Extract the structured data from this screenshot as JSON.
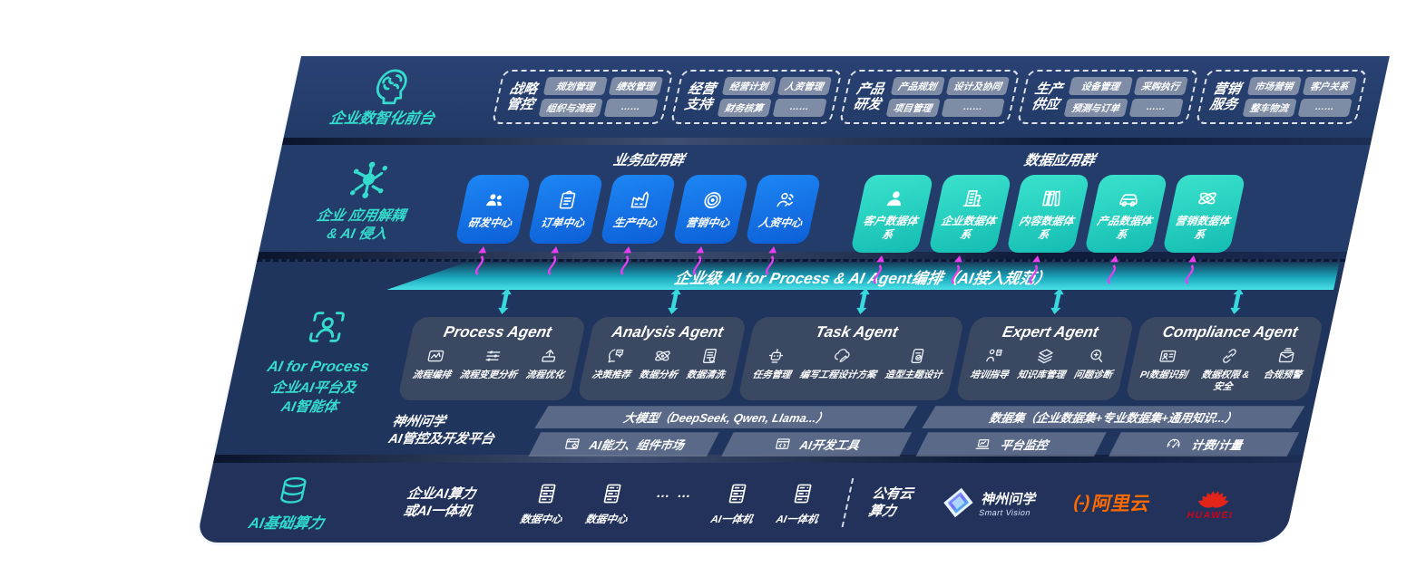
{
  "colors": {
    "accent_teal": "#35dccd",
    "card_blue": "#1677eb",
    "card_teal": "#29d8c3",
    "arrow_magenta": "#e93df0",
    "bus_teal": "#3fd9e0",
    "panel_navy": "#233a66",
    "ali_orange": "#ff6a00",
    "huawei_red": "#d0021b"
  },
  "front": {
    "icon": "brain-head",
    "label": "企业数智化前台",
    "groups": [
      {
        "title": "战略管控",
        "items": [
          "规划管理",
          "绩效管理",
          "组织与流程",
          "……"
        ]
      },
      {
        "title": "经营支持",
        "items": [
          "经营计划",
          "人资管理",
          "财务核算",
          "……"
        ]
      },
      {
        "title": "产品研发",
        "items": [
          "产品规划",
          "设计及协同",
          "项目管理",
          "……"
        ]
      },
      {
        "title": "生产供应",
        "items": [
          "设备管理",
          "采购执行",
          "预测与订单",
          "……"
        ]
      },
      {
        "title": "营销服务",
        "items": [
          "市场营销",
          "客户关系",
          "整车物流",
          "……"
        ]
      }
    ]
  },
  "apps": {
    "icon": "molecule",
    "label1": "企业 应用解耦",
    "label2": "& AI 侵入",
    "business": {
      "title": "业务应用群",
      "cards": [
        {
          "icon": "team",
          "label": "研发中心"
        },
        {
          "icon": "clipboard",
          "label": "订单中心"
        },
        {
          "icon": "factory",
          "label": "生产中心"
        },
        {
          "icon": "target",
          "label": "营销中心"
        },
        {
          "icon": "person-wave",
          "label": "人资中心"
        }
      ]
    },
    "data": {
      "title": "数据应用群",
      "cards": [
        {
          "icon": "user",
          "label": "客户数据体系"
        },
        {
          "icon": "building",
          "label": "企业数据体系"
        },
        {
          "icon": "books",
          "label": "内容数据体系"
        },
        {
          "icon": "car",
          "label": "产品数据体系"
        },
        {
          "icon": "atom",
          "label": "营销数据体系"
        }
      ]
    }
  },
  "ai": {
    "icon": "scan-person",
    "bus_title": "企业级 AI for Process & AI Agent编排（AI接入规范）",
    "label1": "AI for Process",
    "label2": "企业AI平台及",
    "label3": "AI智能体",
    "agents": [
      {
        "title": "Process Agent",
        "items": [
          {
            "icon": "flow",
            "label": "流程编排"
          },
          {
            "icon": "sliders",
            "label": "流程变更分析"
          },
          {
            "icon": "optimize",
            "label": "流程优化"
          }
        ]
      },
      {
        "title": "Analysis Agent",
        "items": [
          {
            "icon": "head-chat",
            "label": "决策推荐"
          },
          {
            "icon": "atom",
            "label": "数据分析"
          },
          {
            "icon": "doc-clean",
            "label": "数据清洗"
          }
        ]
      },
      {
        "title": "Task Agent",
        "items": [
          {
            "icon": "robot",
            "label": "任务管理"
          },
          {
            "icon": "cloud-edit",
            "label": "编写工程设计方案"
          },
          {
            "icon": "tablet-check",
            "label": "造型主题设计"
          }
        ]
      },
      {
        "title": "Expert Agent",
        "items": [
          {
            "icon": "teach",
            "label": "培训指导"
          },
          {
            "icon": "layers",
            "label": "知识库管理"
          },
          {
            "icon": "diagnose",
            "label": "问题诊断"
          }
        ]
      },
      {
        "title": "Compliance Agent",
        "items": [
          {
            "icon": "id-card",
            "label": "PI数据识别"
          },
          {
            "icon": "shield-link",
            "label": "数据权限 & 安全"
          },
          {
            "icon": "mail-alert",
            "label": "合规预警"
          }
        ]
      }
    ],
    "platform": {
      "label1": "神州问学",
      "label2": "AI管控及开发平台",
      "model_title": "大模型（DeepSeek, Qwen, Llama...）",
      "model_tools": [
        {
          "icon": "window-gear",
          "label": "AI能力、组件市场"
        },
        {
          "icon": "window-tool",
          "label": "AI开发工具"
        }
      ],
      "data_title": "数据集（企业数据集+专业数据集+通用知识...）",
      "data_tools": [
        {
          "icon": "monitor",
          "label": "平台监控"
        },
        {
          "icon": "gauge",
          "label": "计费/计量"
        }
      ]
    }
  },
  "infra": {
    "icon": "database",
    "label": "AI基础算力",
    "compute1": "企业AI算力",
    "compute2": "或AI一体机",
    "server_icon": "server",
    "servers": [
      "数据中心",
      "数据中心",
      "AI一体机",
      "AI一体机"
    ],
    "dots": "… …",
    "cloud1": "公有云",
    "cloud2": "算力",
    "logos": {
      "sv_icon": "sv-diamond",
      "sv_name": "神州问学",
      "sv_sub": "Smart Vision",
      "ali_mark": "(-)",
      "ali_name": "阿里云",
      "hw_icon": "huawei-flower",
      "hw_name": "HUAWEI"
    }
  }
}
